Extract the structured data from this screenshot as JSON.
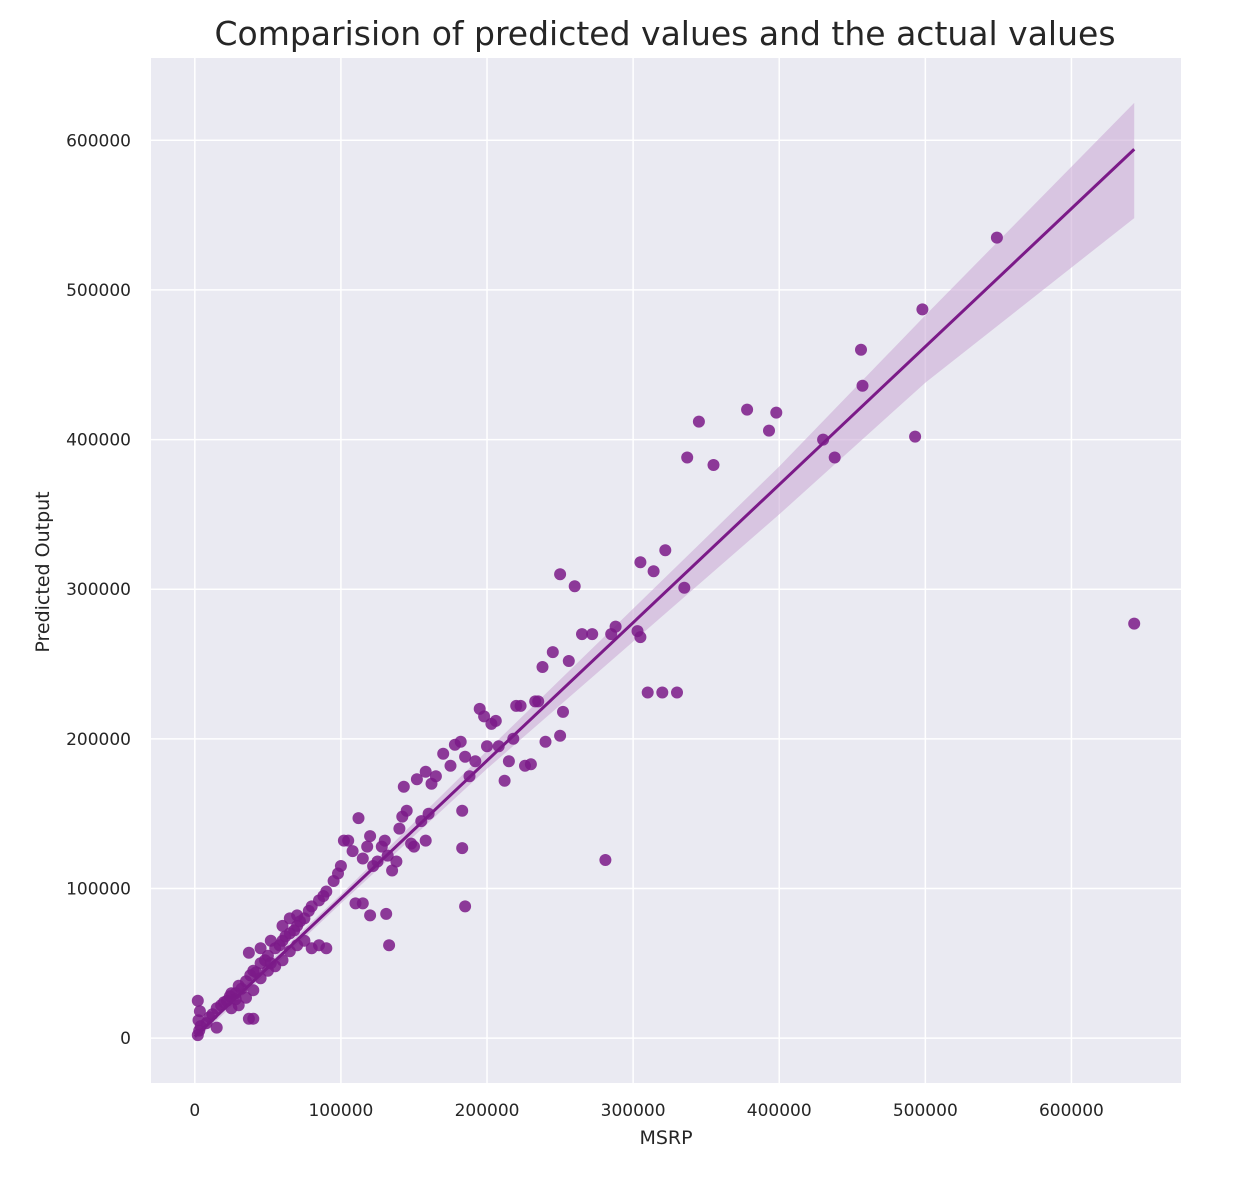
{
  "chart_data": {
    "type": "scatter",
    "title": "Comparision of predicted values and the actual values",
    "xlabel": "MSRP",
    "ylabel": "Predicted Output",
    "xlim": [
      -30000,
      675000
    ],
    "ylim": [
      -30000,
      655000
    ],
    "xticks": [
      0,
      100000,
      200000,
      300000,
      400000,
      500000,
      600000
    ],
    "yticks": [
      0,
      100000,
      200000,
      300000,
      400000,
      500000,
      600000
    ],
    "xtick_labels": [
      "0",
      "100000",
      "200000",
      "300000",
      "400000",
      "500000",
      "600000"
    ],
    "ytick_labels": [
      "0",
      "100000",
      "200000",
      "300000",
      "400000",
      "500000",
      "600000"
    ],
    "grid": true,
    "colors": {
      "point": "#7b1a88",
      "line": "#7b1a88",
      "band": "#c9a6d4",
      "background": "#eaeaf2",
      "grid": "#ffffff"
    },
    "regression_line": {
      "x": [
        0,
        643000
      ],
      "y": [
        1000,
        594000
      ]
    },
    "confidence_band": {
      "x": [
        0,
        100000,
        200000,
        300000,
        400000,
        500000,
        643000
      ],
      "lower": [
        -2000,
        90000,
        180000,
        265000,
        350000,
        438000,
        548000
      ],
      "upper": [
        4000,
        96000,
        192000,
        287000,
        382000,
        483000,
        625000
      ]
    },
    "series": [
      {
        "points": [
          [
            2000,
            2000
          ],
          [
            3000,
            5000
          ],
          [
            2500,
            12000
          ],
          [
            4000,
            8000
          ],
          [
            3500,
            18000
          ],
          [
            2000,
            25000
          ],
          [
            8000,
            10000
          ],
          [
            10000,
            14000
          ],
          [
            12000,
            16000
          ],
          [
            15000,
            20000
          ],
          [
            15000,
            7000
          ],
          [
            18000,
            22000
          ],
          [
            20000,
            24000
          ],
          [
            22000,
            25000
          ],
          [
            24000,
            28000
          ],
          [
            25000,
            30000
          ],
          [
            28000,
            30000
          ],
          [
            30000,
            35000
          ],
          [
            32000,
            33000
          ],
          [
            35000,
            38000
          ],
          [
            38000,
            42000
          ],
          [
            40000,
            45000
          ],
          [
            42000,
            44000
          ],
          [
            45000,
            50000
          ],
          [
            48000,
            52000
          ],
          [
            50000,
            55000
          ],
          [
            52000,
            50000
          ],
          [
            55000,
            60000
          ],
          [
            58000,
            62000
          ],
          [
            60000,
            65000
          ],
          [
            62000,
            68000
          ],
          [
            65000,
            70000
          ],
          [
            68000,
            72000
          ],
          [
            70000,
            75000
          ],
          [
            72000,
            78000
          ],
          [
            75000,
            80000
          ],
          [
            78000,
            85000
          ],
          [
            80000,
            88000
          ],
          [
            85000,
            92000
          ],
          [
            88000,
            95000
          ],
          [
            90000,
            98000
          ],
          [
            30000,
            22000
          ],
          [
            35000,
            27000
          ],
          [
            40000,
            32000
          ],
          [
            45000,
            40000
          ],
          [
            50000,
            45000
          ],
          [
            55000,
            48000
          ],
          [
            60000,
            52000
          ],
          [
            65000,
            58000
          ],
          [
            70000,
            62000
          ],
          [
            75000,
            65000
          ],
          [
            80000,
            60000
          ],
          [
            85000,
            62000
          ],
          [
            90000,
            60000
          ],
          [
            37000,
            57000
          ],
          [
            45000,
            60000
          ],
          [
            52000,
            65000
          ],
          [
            60000,
            75000
          ],
          [
            65000,
            80000
          ],
          [
            70000,
            82000
          ],
          [
            37000,
            13000
          ],
          [
            40000,
            13000
          ],
          [
            25000,
            20000
          ],
          [
            28000,
            26000
          ],
          [
            95000,
            105000
          ],
          [
            98000,
            110000
          ],
          [
            100000,
            115000
          ],
          [
            102000,
            132000
          ],
          [
            105000,
            132000
          ],
          [
            108000,
            125000
          ],
          [
            112000,
            147000
          ],
          [
            115000,
            120000
          ],
          [
            118000,
            128000
          ],
          [
            120000,
            135000
          ],
          [
            122000,
            115000
          ],
          [
            125000,
            118000
          ],
          [
            128000,
            128000
          ],
          [
            130000,
            132000
          ],
          [
            132000,
            122000
          ],
          [
            135000,
            112000
          ],
          [
            138000,
            118000
          ],
          [
            140000,
            140000
          ],
          [
            142000,
            148000
          ],
          [
            145000,
            152000
          ],
          [
            148000,
            130000
          ],
          [
            150000,
            128000
          ],
          [
            155000,
            145000
          ],
          [
            158000,
            132000
          ],
          [
            160000,
            150000
          ],
          [
            110000,
            90000
          ],
          [
            115000,
            90000
          ],
          [
            120000,
            82000
          ],
          [
            131000,
            83000
          ],
          [
            133000,
            62000
          ],
          [
            143000,
            168000
          ],
          [
            152000,
            173000
          ],
          [
            158000,
            178000
          ],
          [
            162000,
            170000
          ],
          [
            165000,
            175000
          ],
          [
            170000,
            190000
          ],
          [
            175000,
            182000
          ],
          [
            178000,
            196000
          ],
          [
            182000,
            198000
          ],
          [
            185000,
            188000
          ],
          [
            188000,
            175000
          ],
          [
            192000,
            185000
          ],
          [
            195000,
            220000
          ],
          [
            198000,
            215000
          ],
          [
            200000,
            195000
          ],
          [
            203000,
            210000
          ],
          [
            206000,
            212000
          ],
          [
            208000,
            195000
          ],
          [
            212000,
            172000
          ],
          [
            215000,
            185000
          ],
          [
            218000,
            200000
          ],
          [
            220000,
            222000
          ],
          [
            223000,
            222000
          ],
          [
            226000,
            182000
          ],
          [
            230000,
            183000
          ],
          [
            233000,
            225000
          ],
          [
            235000,
            225000
          ],
          [
            238000,
            248000
          ],
          [
            240000,
            198000
          ],
          [
            245000,
            258000
          ],
          [
            250000,
            202000
          ],
          [
            252000,
            218000
          ],
          [
            256000,
            252000
          ],
          [
            260000,
            302000
          ],
          [
            265000,
            270000
          ],
          [
            272000,
            270000
          ],
          [
            285000,
            270000
          ],
          [
            288000,
            275000
          ],
          [
            250000,
            310000
          ],
          [
            183000,
            152000
          ],
          [
            183000,
            127000
          ],
          [
            185000,
            88000
          ],
          [
            281000,
            119000
          ],
          [
            303000,
            272000
          ],
          [
            305000,
            268000
          ],
          [
            305000,
            318000
          ],
          [
            310000,
            231000
          ],
          [
            314000,
            312000
          ],
          [
            320000,
            231000
          ],
          [
            322000,
            326000
          ],
          [
            330000,
            231000
          ],
          [
            335000,
            301000
          ],
          [
            337000,
            388000
          ],
          [
            345000,
            412000
          ],
          [
            355000,
            383000
          ],
          [
            378000,
            420000
          ],
          [
            393000,
            406000
          ],
          [
            398000,
            418000
          ],
          [
            430000,
            400000
          ],
          [
            438000,
            388000
          ],
          [
            456000,
            460000
          ],
          [
            457000,
            436000
          ],
          [
            493000,
            402000
          ],
          [
            498000,
            487000
          ],
          [
            549000,
            535000
          ],
          [
            643000,
            277000
          ]
        ]
      }
    ]
  }
}
